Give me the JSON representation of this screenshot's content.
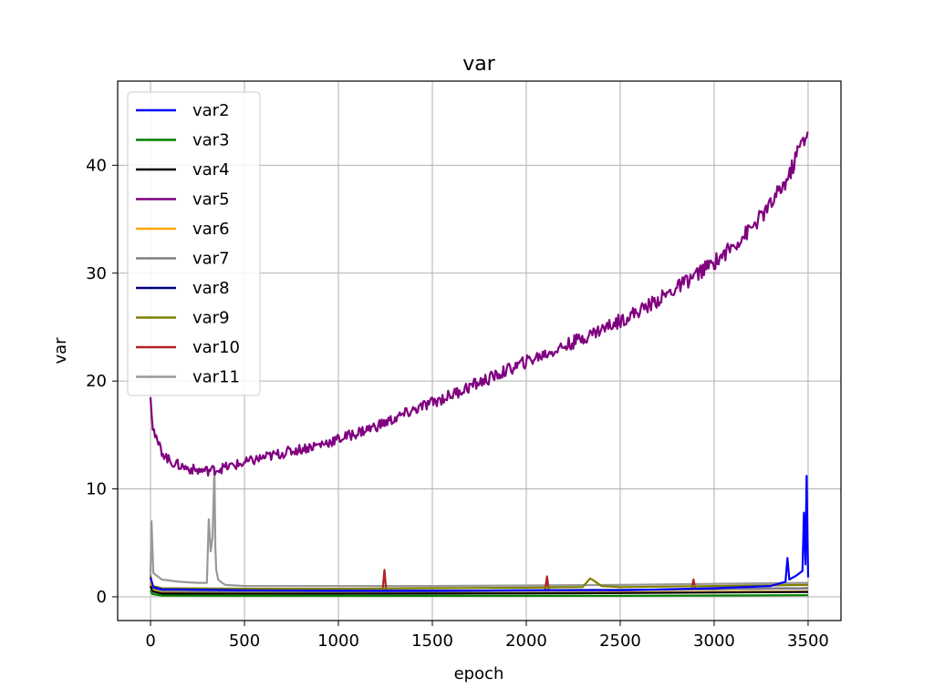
{
  "chart_data": {
    "type": "line",
    "title": "var",
    "xlabel": "epoch",
    "ylabel": "var",
    "xlim": [
      -175,
      3675
    ],
    "ylim": [
      -2.2,
      47.8
    ],
    "xticks": [
      0,
      500,
      1000,
      1500,
      2000,
      2500,
      3000,
      3500
    ],
    "yticks": [
      0,
      10,
      20,
      30,
      40
    ],
    "grid": true,
    "legend_position": "top-left",
    "series": [
      {
        "name": "var2",
        "color": "#0000ff",
        "x": [
          0,
          15,
          60,
          500,
          1000,
          1500,
          2000,
          2500,
          3000,
          3300,
          3380,
          3390,
          3400,
          3440,
          3470,
          3478,
          3486,
          3492,
          3500
        ],
        "y": [
          1.8,
          0.9,
          0.7,
          0.6,
          0.55,
          0.55,
          0.6,
          0.6,
          0.8,
          1.0,
          1.4,
          3.6,
          1.6,
          2.0,
          2.4,
          7.8,
          3.0,
          11.2,
          1.8
        ]
      },
      {
        "name": "var3",
        "color": "#008000",
        "x": [
          0,
          10,
          60,
          500,
          1000,
          1500,
          2000,
          2500,
          3000,
          3500
        ],
        "y": [
          0.6,
          0.25,
          0.12,
          0.1,
          0.1,
          0.1,
          0.1,
          0.1,
          0.12,
          0.15
        ]
      },
      {
        "name": "var4",
        "color": "#000000",
        "x": [
          0,
          10,
          60,
          500,
          1000,
          1500,
          2000,
          2500,
          3000,
          3500
        ],
        "y": [
          1.0,
          0.5,
          0.3,
          0.28,
          0.28,
          0.3,
          0.32,
          0.35,
          0.4,
          0.45
        ]
      },
      {
        "name": "var5",
        "color": "#800080",
        "x": [
          0,
          10,
          30,
          60,
          100,
          150,
          200,
          250,
          300,
          350,
          400,
          500,
          600,
          700,
          800,
          900,
          1000,
          1100,
          1200,
          1300,
          1400,
          1500,
          1600,
          1700,
          1800,
          1900,
          2000,
          2100,
          2200,
          2300,
          2400,
          2500,
          2600,
          2700,
          2800,
          2900,
          3000,
          3100,
          3200,
          3300,
          3400,
          3450,
          3500
        ],
        "y": [
          19.0,
          16.0,
          14.5,
          13.5,
          12.6,
          12.2,
          11.9,
          11.7,
          11.7,
          11.8,
          12.0,
          12.4,
          12.9,
          13.3,
          13.7,
          14.1,
          14.6,
          15.2,
          15.8,
          16.5,
          17.3,
          18.0,
          18.7,
          19.5,
          20.2,
          21.0,
          21.8,
          22.5,
          23.2,
          24.0,
          24.8,
          25.6,
          26.5,
          27.5,
          28.6,
          29.8,
          31.0,
          32.5,
          34.2,
          36.3,
          39.0,
          41.5,
          43.2
        ],
        "noise": 0.55
      },
      {
        "name": "var6",
        "color": "#ffa500",
        "x": [
          0,
          10,
          60,
          500,
          1000,
          1500,
          2000,
          2500,
          3000,
          3500
        ],
        "y": [
          1.5,
          0.6,
          0.35,
          0.3,
          0.3,
          0.32,
          0.35,
          0.4,
          0.45,
          0.5
        ]
      },
      {
        "name": "var7",
        "color": "#808080",
        "x": [
          0,
          10,
          60,
          500,
          1000,
          1500,
          2000,
          2500,
          3000,
          3500
        ],
        "y": [
          1.2,
          0.7,
          0.5,
          0.45,
          0.45,
          0.5,
          0.55,
          0.6,
          0.7,
          0.8
        ]
      },
      {
        "name": "var8",
        "color": "#000080",
        "x": [
          0,
          10,
          60,
          500,
          1000,
          1500,
          2000,
          2500,
          3000,
          3500
        ],
        "y": [
          1.3,
          0.8,
          0.6,
          0.55,
          0.55,
          0.55,
          0.6,
          0.65,
          0.7,
          0.8
        ]
      },
      {
        "name": "var9",
        "color": "#808000",
        "x": [
          0,
          10,
          60,
          500,
          1000,
          1500,
          2000,
          2300,
          2340,
          2360,
          2400,
          2500,
          3000,
          3500
        ],
        "y": [
          2.0,
          1.0,
          0.8,
          0.75,
          0.75,
          0.8,
          0.85,
          0.9,
          1.7,
          1.5,
          1.0,
          0.9,
          1.0,
          1.1
        ]
      },
      {
        "name": "var10",
        "color": "#b22222",
        "x": [
          0,
          10,
          60,
          500,
          1000,
          1235,
          1245,
          1255,
          1500,
          2000,
          2100,
          2110,
          2120,
          2500,
          2880,
          2890,
          2900,
          3500
        ],
        "y": [
          1.8,
          0.9,
          0.5,
          0.45,
          0.45,
          0.5,
          2.5,
          0.5,
          0.5,
          0.55,
          0.6,
          1.9,
          0.6,
          0.6,
          0.7,
          1.6,
          0.7,
          0.8
        ]
      },
      {
        "name": "var11",
        "color": "#999999",
        "x": [
          0,
          5,
          15,
          60,
          150,
          250,
          300,
          310,
          320,
          330,
          340,
          345,
          350,
          360,
          380,
          400,
          500,
          1000,
          1500,
          2000,
          2500,
          3000,
          3500
        ],
        "y": [
          2.0,
          7.0,
          2.2,
          1.6,
          1.4,
          1.3,
          1.3,
          7.2,
          4.2,
          5.5,
          12.0,
          4.5,
          2.5,
          1.6,
          1.3,
          1.1,
          1.0,
          1.0,
          1.0,
          1.05,
          1.1,
          1.2,
          1.3
        ]
      }
    ]
  }
}
